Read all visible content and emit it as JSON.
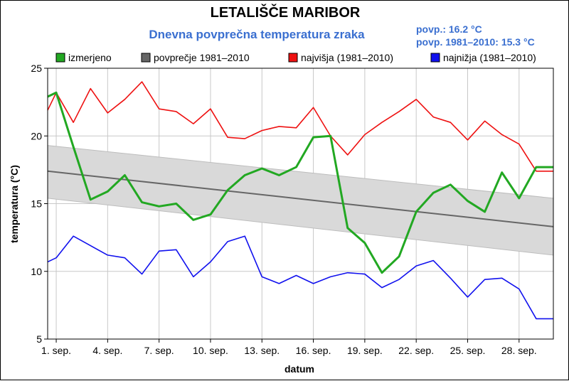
{
  "header": {
    "title": "LETALIŠČE MARIBOR",
    "subtitle": "Dnevna povprečna temperatura zraka",
    "stat_current": "povp.: 16.2 °C",
    "stat_normal": "povp. 1981–2010: 15.3 °C"
  },
  "chart_data": {
    "type": "line",
    "title": "Dnevna povprečna temperatura zraka",
    "xlabel": "datum",
    "ylabel": "temperatura (°C)",
    "ylim": [
      5,
      25
    ],
    "xlim": [
      0.5,
      30
    ],
    "yticks": [
      5,
      10,
      15,
      20,
      25
    ],
    "xticks": [
      {
        "x": 1,
        "label": "1. sep."
      },
      {
        "x": 4,
        "label": "4. sep."
      },
      {
        "x": 7,
        "label": "7. sep."
      },
      {
        "x": 10,
        "label": "10. sep."
      },
      {
        "x": 13,
        "label": "13. sep."
      },
      {
        "x": 16,
        "label": "16. sep."
      },
      {
        "x": 19,
        "label": "19. sep."
      },
      {
        "x": 22,
        "label": "22. sep."
      },
      {
        "x": 25,
        "label": "25. sep."
      },
      {
        "x": 28,
        "label": "28. sep."
      }
    ],
    "grid": true,
    "legend_position": "top",
    "series": [
      {
        "name": "izmerjeno",
        "color": "#22a822",
        "x": [
          0.5,
          1,
          2,
          3,
          4,
          5,
          6,
          7,
          8,
          9,
          10,
          11,
          12,
          13,
          14,
          15,
          16,
          17,
          18,
          19,
          20,
          21,
          22,
          23,
          24,
          25,
          26,
          27,
          28,
          29,
          30
        ],
        "values": [
          22.9,
          23.2,
          19.2,
          15.3,
          15.9,
          17.1,
          15.1,
          14.8,
          15.0,
          13.8,
          14.2,
          16.0,
          17.1,
          17.6,
          17.1,
          17.7,
          19.9,
          20.0,
          13.2,
          12.1,
          9.9,
          11.1,
          14.4,
          15.8,
          16.4,
          15.2,
          14.4,
          17.3,
          15.4,
          17.7,
          17.7
        ]
      },
      {
        "name": "povprečje 1981–2010",
        "color": "#666666",
        "start": [
          0.5,
          17.4
        ],
        "end": [
          30,
          13.3
        ],
        "band_upper": [
          19.3,
          15.4
        ],
        "band_lower": [
          15.4,
          11.2
        ]
      },
      {
        "name": "najvišja (1981–2010)",
        "color": "#ee1111",
        "x": [
          0.5,
          1,
          2,
          3,
          4,
          5,
          6,
          7,
          8,
          9,
          10,
          11,
          12,
          13,
          14,
          15,
          16,
          17,
          18,
          19,
          20,
          21,
          22,
          23,
          24,
          25,
          26,
          27,
          28,
          29,
          30
        ],
        "values": [
          21.9,
          23.2,
          21.0,
          23.5,
          21.7,
          22.7,
          24.0,
          22.0,
          21.8,
          20.9,
          22.0,
          19.9,
          19.8,
          20.4,
          20.7,
          20.6,
          22.1,
          20.0,
          18.6,
          20.1,
          21.0,
          21.8,
          22.7,
          21.4,
          21.0,
          19.7,
          21.1,
          20.1,
          19.4,
          17.4,
          17.4
        ]
      },
      {
        "name": "najnižja (1981–2010)",
        "color": "#1111ee",
        "x": [
          0.5,
          1,
          2,
          3,
          4,
          5,
          6,
          7,
          8,
          9,
          10,
          11,
          12,
          13,
          14,
          15,
          16,
          17,
          18,
          19,
          20,
          21,
          22,
          23,
          24,
          25,
          26,
          27,
          28,
          29,
          30
        ],
        "values": [
          10.7,
          11.0,
          12.6,
          11.9,
          11.2,
          11.0,
          9.8,
          11.5,
          11.6,
          9.6,
          10.7,
          12.2,
          12.6,
          9.6,
          9.1,
          9.7,
          9.1,
          9.6,
          9.9,
          9.8,
          8.8,
          9.4,
          10.4,
          10.8,
          9.5,
          8.1,
          9.4,
          9.5,
          8.7,
          6.5,
          6.5
        ]
      }
    ]
  }
}
